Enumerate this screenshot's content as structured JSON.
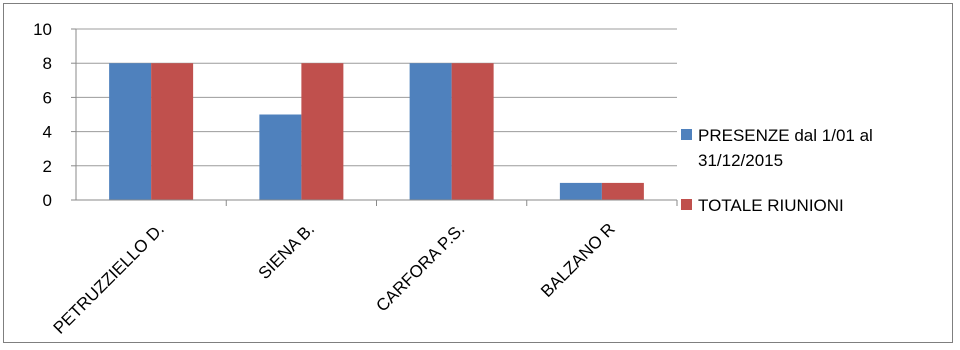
{
  "chart_data": {
    "type": "bar",
    "categories": [
      "PETRUZZIELLO D.",
      "SIENA B.",
      "CARFORA P.S.",
      "BALZANO R"
    ],
    "series": [
      {
        "name": "PRESENZE dal 1/01 al 31/12/2015",
        "name_lines": [
          "PRESENZE dal 1/01 al",
          "31/12/2015"
        ],
        "values": [
          8,
          5,
          8,
          1
        ],
        "color": "#4f81bd"
      },
      {
        "name": "TOTALE RIUNIONI",
        "name_lines": [
          "TOTALE RIUNIONI"
        ],
        "values": [
          8,
          8,
          8,
          1
        ],
        "color": "#c0504d"
      }
    ],
    "ylim": [
      0,
      10
    ],
    "yticks": [
      0,
      2,
      4,
      6,
      8,
      10
    ],
    "grid": true,
    "legend": "right",
    "title": "",
    "xlabel": "",
    "ylabel": ""
  }
}
